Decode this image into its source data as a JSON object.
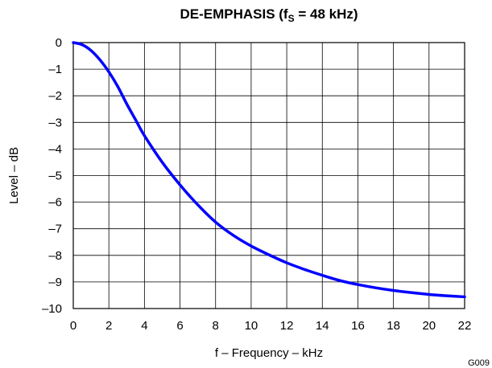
{
  "chart_data": {
    "type": "line",
    "title": {
      "prefix": "DE-EMPHASIS (f",
      "subscript": "S",
      "suffix": " = 48 kHz)"
    },
    "xlabel": "f – Frequency – kHz",
    "ylabel": "Level – dB",
    "xlim": [
      0,
      22
    ],
    "ylim": [
      -10,
      0
    ],
    "x_ticks": [
      0,
      2,
      4,
      6,
      8,
      10,
      12,
      14,
      16,
      18,
      20,
      22
    ],
    "y_ticks": [
      0,
      -1,
      -2,
      -3,
      -4,
      -5,
      -6,
      -7,
      -8,
      -9,
      -10
    ],
    "y_tick_labels": [
      "0",
      "–1",
      "–2",
      "–3",
      "–4",
      "–5",
      "–6",
      "–7",
      "–8",
      "–9",
      "–10"
    ],
    "grid": true,
    "figure_id": "G009",
    "series": [
      {
        "color": "#0000ff",
        "x": [
          0,
          0.5,
          1,
          1.5,
          2,
          2.5,
          3,
          3.5,
          4,
          5,
          6,
          7,
          8,
          9,
          10,
          11,
          12,
          13,
          14,
          15,
          16,
          17,
          18,
          19,
          20,
          21,
          22
        ],
        "y": [
          0,
          -0.08,
          -0.3,
          -0.65,
          -1.1,
          -1.65,
          -2.3,
          -2.9,
          -3.5,
          -4.5,
          -5.35,
          -6.1,
          -6.75,
          -7.25,
          -7.65,
          -7.98,
          -8.28,
          -8.53,
          -8.75,
          -8.95,
          -9.1,
          -9.22,
          -9.32,
          -9.4,
          -9.47,
          -9.52,
          -9.56
        ]
      }
    ]
  }
}
